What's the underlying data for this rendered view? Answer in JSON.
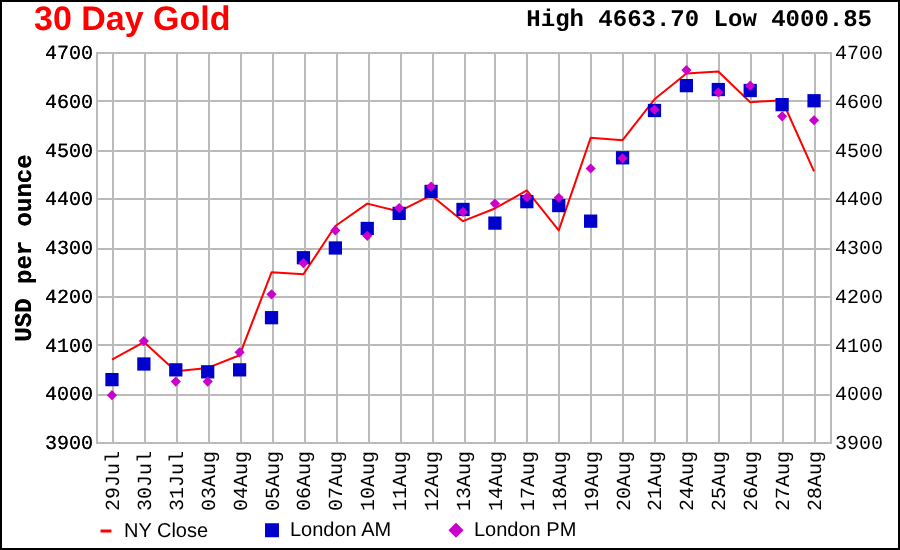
{
  "chart_data": {
    "type": "line",
    "title": "30 Day Gold",
    "annotations": [
      "High 4663.70 Low 4000.85"
    ],
    "ylabel": "USD per ounce",
    "categories": [
      "29Jul",
      "30Jul",
      "31Jul",
      "03Aug",
      "04Aug",
      "05Aug",
      "06Aug",
      "07Aug",
      "10Aug",
      "11Aug",
      "12Aug",
      "13Aug",
      "14Aug",
      "17Aug",
      "18Aug",
      "19Aug",
      "20Aug",
      "21Aug",
      "24Aug",
      "25Aug",
      "26Aug",
      "27Aug",
      "28Aug"
    ],
    "series": [
      {
        "name": "NY Close",
        "color": "#ff0000",
        "type": "line",
        "marker": "none",
        "values": [
          4069,
          4105,
          4045,
          4052,
          4078,
          4248,
          4244,
          4343,
          4389,
          4373,
          4406,
          4353,
          4379,
          4416,
          4334,
          4524,
          4519,
          4603,
          4656,
          4660,
          4597,
          4601,
          4455
        ]
      },
      {
        "name": "London AM",
        "color": "#0000cc",
        "type": "scatter",
        "marker": "square",
        "values": [
          4028,
          4060,
          4048,
          4044,
          4048,
          4155,
          4278,
          4298,
          4338,
          4369,
          4414,
          4377,
          4349,
          4393,
          4385,
          4353,
          4483,
          4580,
          4631,
          4623,
          4621,
          4592,
          4600
        ]
      },
      {
        "name": "London PM",
        "color": "#cc00cc",
        "type": "scatter",
        "marker": "diamond",
        "values": [
          3996,
          4107,
          4024,
          4024,
          4084,
          4203,
          4267,
          4334,
          4323,
          4380,
          4424,
          4372,
          4389,
          4402,
          4401,
          4461,
          4482,
          4582,
          4663,
          4617,
          4631,
          4568,
          4560
        ]
      }
    ],
    "ylim": [
      3900,
      4700
    ],
    "yticks": [
      3900,
      4000,
      4100,
      4200,
      4300,
      4400,
      4500,
      4600,
      4700
    ],
    "y2lim": [
      3900,
      4700
    ],
    "y2ticks": [
      3900,
      4000,
      4100,
      4200,
      4300,
      4400,
      4500,
      4600,
      4700
    ],
    "grid": true,
    "legend": "bottom"
  }
}
